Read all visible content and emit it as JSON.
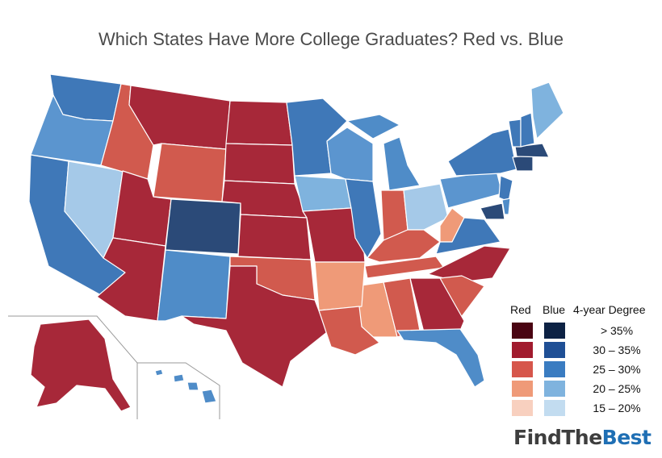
{
  "title": "Which States Have More College Graduates? Red vs. Blue",
  "legend": {
    "red_header": "Red",
    "blue_header": "Blue",
    "degree_header": "4-year Degree",
    "bins": [
      {
        "label": "> 35%",
        "red": "#4a0412",
        "blue": "#0d2244"
      },
      {
        "label": "30 – 35%",
        "red": "#a11b2e",
        "blue": "#1f4f95"
      },
      {
        "label": "25 – 30%",
        "red": "#d6564b",
        "blue": "#3a7cc1"
      },
      {
        "label": "20 – 25%",
        "red": "#ef9a78",
        "blue": "#7fb3de"
      },
      {
        "label": "15 – 20%",
        "red": "#f8d0bf",
        "blue": "#c2dcf0"
      }
    ]
  },
  "brand": {
    "part1": "FindThe",
    "part2": "Best"
  },
  "colors": {
    "red_dark": "#a72839",
    "red_mid": "#d15a4e",
    "red_light": "#ef9a78",
    "blue_dark": "#2b4a78",
    "blue_mid": "#3f78b8",
    "blue_light": "#7fb3de",
    "blue_pale": "#a5c9e8"
  }
}
